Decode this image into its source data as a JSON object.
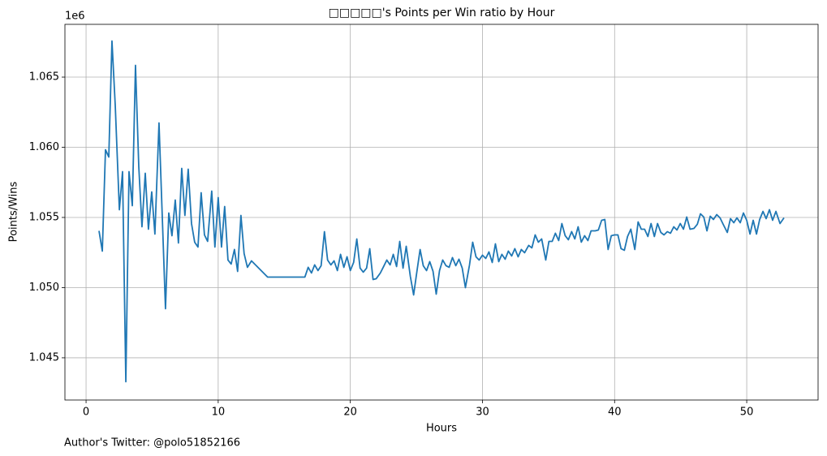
{
  "chart_data": {
    "type": "line",
    "title": "□□□□□'s Points per Win ratio by Hour",
    "x_label": "Hours",
    "y_label": "Points/Wins",
    "y_offset_text": "1e6",
    "footer": "Author's Twitter: @polo51852166",
    "color": "#1f77b4",
    "grid": true,
    "xlim": [
      -1.6,
      55.4
    ],
    "xticks": [
      0,
      10,
      20,
      30,
      40,
      50
    ],
    "ylim": [
      1041990,
      1068760
    ],
    "yticks": [
      {
        "value": 1045000,
        "label": "1.045"
      },
      {
        "value": 1050000,
        "label": "1.050"
      },
      {
        "value": 1055000,
        "label": "1.055"
      },
      {
        "value": 1060000,
        "label": "1.060"
      },
      {
        "value": 1065000,
        "label": "1.065"
      }
    ],
    "x": [
      0.98,
      1.23,
      1.47,
      1.72,
      1.96,
      2.21,
      2.52,
      2.76,
      3.01,
      3.25,
      3.5,
      3.74,
      3.99,
      4.23,
      4.48,
      4.72,
      4.97,
      5.21,
      5.52,
      6.01,
      6.26,
      6.5,
      6.75,
      6.99,
      7.24,
      7.48,
      7.73,
      7.98,
      8.22,
      8.47,
      8.71,
      8.96,
      9.2,
      9.51,
      9.75,
      10.0,
      10.25,
      10.49,
      10.74,
      10.98,
      11.23,
      11.47,
      11.72,
      11.96,
      12.21,
      12.52,
      13.74,
      16.56,
      16.81,
      17.06,
      17.3,
      17.55,
      17.79,
      18.04,
      18.28,
      18.53,
      18.77,
      19.02,
      19.26,
      19.51,
      19.75,
      20.0,
      20.25,
      20.49,
      20.74,
      20.98,
      21.23,
      21.47,
      21.72,
      21.96,
      22.27,
      22.52,
      22.76,
      23.01,
      23.25,
      23.5,
      23.74,
      23.99,
      24.23,
      24.54,
      24.79,
      25.03,
      25.28,
      25.52,
      25.77,
      26.01,
      26.26,
      26.5,
      26.75,
      26.99,
      27.24,
      27.48,
      27.73,
      27.98,
      28.22,
      28.47,
      28.71,
      29.02,
      29.26,
      29.51,
      29.75,
      30.0,
      30.25,
      30.49,
      30.74,
      30.98,
      31.23,
      31.47,
      31.72,
      31.96,
      32.21,
      32.45,
      32.7,
      32.94,
      33.19,
      33.5,
      33.74,
      33.99,
      34.23,
      34.48,
      34.79,
      35.03,
      35.28,
      35.52,
      35.77,
      36.01,
      36.26,
      36.5,
      36.75,
      36.99,
      37.24,
      37.48,
      37.73,
      37.98,
      38.22,
      38.53,
      38.77,
      39.02,
      39.26,
      39.51,
      39.75,
      40.0,
      40.25,
      40.49,
      40.74,
      40.98,
      41.23,
      41.53,
      41.78,
      42.02,
      42.27,
      42.52,
      42.76,
      43.01,
      43.25,
      43.5,
      43.74,
      43.99,
      44.23,
      44.48,
      44.72,
      44.97,
      45.21,
      45.46,
      45.71,
      46.01,
      46.26,
      46.5,
      46.75,
      46.99,
      47.24,
      47.48,
      47.73,
      47.98,
      48.22,
      48.53,
      48.77,
      49.02,
      49.26,
      49.51,
      49.75,
      50.0,
      50.25,
      50.49,
      50.74,
      50.98,
      51.23,
      51.47,
      51.72,
      51.96,
      52.21,
      52.52,
      52.82
    ],
    "values": [
      1054046,
      1052601,
      1059826,
      1059306,
      1067571,
      1062947,
      1055549,
      1058265,
      1043295,
      1058265,
      1055838,
      1065837,
      1058612,
      1054335,
      1058150,
      1054162,
      1056820,
      1053815,
      1061733,
      1048497,
      1055318,
      1053699,
      1056243,
      1053179,
      1058497,
      1055144,
      1058439,
      1054566,
      1053237,
      1052890,
      1056763,
      1053757,
      1053295,
      1056878,
      1052890,
      1056416,
      1052890,
      1055780,
      1051965,
      1051676,
      1052717,
      1051156,
      1055144,
      1052428,
      1051445,
      1051907,
      1050751,
      1050751,
      1051445,
      1051040,
      1051618,
      1051214,
      1051561,
      1053988,
      1051965,
      1051618,
      1051907,
      1051214,
      1052370,
      1051445,
      1052196,
      1051214,
      1051792,
      1053468,
      1051387,
      1051098,
      1051387,
      1052774,
      1050578,
      1050636,
      1051040,
      1051503,
      1051965,
      1051618,
      1052370,
      1051503,
      1053295,
      1051387,
      1052948,
      1050809,
      1049480,
      1051098,
      1052717,
      1051561,
      1051214,
      1051850,
      1051156,
      1049538,
      1051214,
      1051965,
      1051561,
      1051445,
      1052139,
      1051561,
      1052023,
      1051387,
      1050000,
      1051618,
      1053237,
      1052196,
      1051965,
      1052312,
      1052081,
      1052543,
      1051792,
      1053121,
      1051850,
      1052370,
      1052023,
      1052601,
      1052254,
      1052774,
      1052196,
      1052717,
      1052485,
      1053006,
      1052832,
      1053757,
      1053237,
      1053468,
      1051965,
      1053295,
      1053295,
      1053873,
      1053352,
      1054566,
      1053699,
      1053410,
      1053988,
      1053468,
      1054335,
      1053237,
      1053699,
      1053352,
      1054046,
      1054046,
      1054104,
      1054797,
      1054855,
      1052717,
      1053699,
      1053757,
      1053757,
      1052774,
      1052659,
      1053641,
      1054162,
      1052717,
      1054682,
      1054162,
      1054162,
      1053641,
      1054566,
      1053641,
      1054566,
      1053930,
      1053757,
      1053988,
      1053873,
      1054335,
      1054104,
      1054566,
      1054162,
      1055029,
      1054162,
      1054220,
      1054509,
      1055260,
      1055029,
      1054046,
      1055086,
      1054855,
      1055202,
      1054971,
      1054509,
      1053930,
      1054913,
      1054624,
      1054971,
      1054624,
      1055318,
      1054797,
      1053815,
      1054797,
      1053815,
      1054855,
      1055433,
      1054913,
      1055549,
      1054797,
      1055433,
      1054566,
      1054971
    ]
  }
}
